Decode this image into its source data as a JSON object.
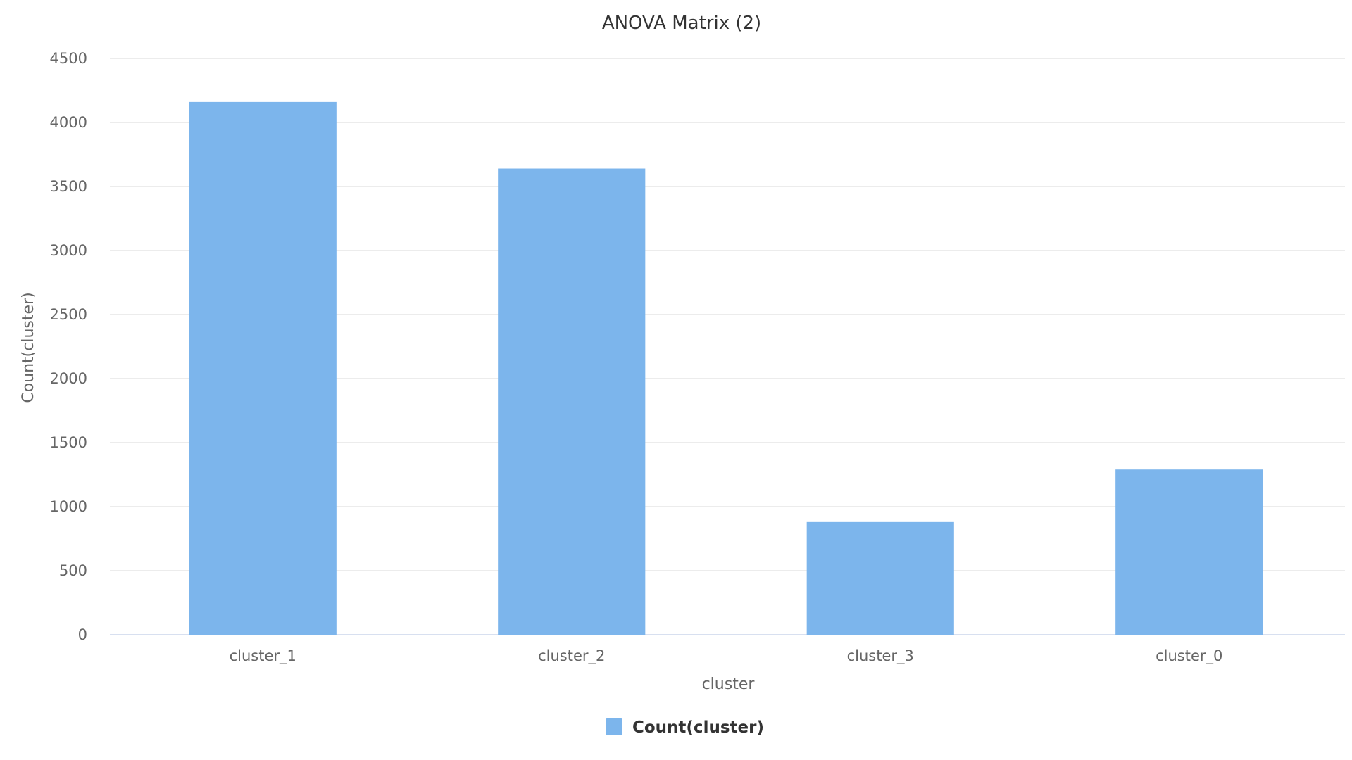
{
  "chart_data": {
    "type": "bar",
    "title": "ANOVA Matrix (2)",
    "xlabel": "cluster",
    "ylabel": "Count(cluster)",
    "categories": [
      "cluster_1",
      "cluster_2",
      "cluster_3",
      "cluster_0"
    ],
    "series": [
      {
        "name": "Count(cluster)",
        "values": [
          4160,
          3640,
          880,
          1290
        ],
        "color": "#7cb5ec"
      }
    ],
    "ylim": [
      0,
      4500
    ],
    "yticks": [
      "0",
      "500",
      "1000",
      "1500",
      "2000",
      "2500",
      "3000",
      "3500",
      "4000",
      "4500"
    ],
    "grid": true,
    "legend": "bottom-center"
  }
}
